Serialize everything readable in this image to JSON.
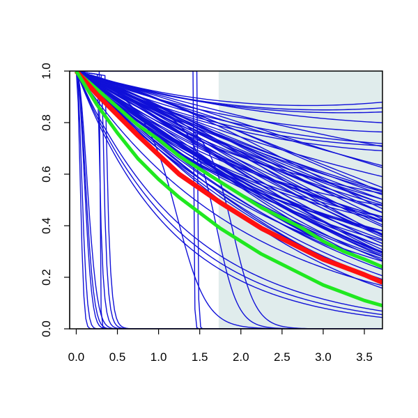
{
  "chart_data": {
    "type": "line",
    "title": "",
    "xlabel": "",
    "ylabel": "",
    "xlim": [
      -0.08,
      3.72
    ],
    "ylim": [
      0,
      1
    ],
    "x_ticks": [
      "0.0",
      "0.5",
      "1.0",
      "1.5",
      "2.0",
      "2.5",
      "3.0",
      "3.5"
    ],
    "y_ticks": [
      "0.0",
      "0.2",
      "0.4",
      "0.6",
      "0.8",
      "1.0"
    ],
    "shaded_region": {
      "x_from": 1.73,
      "x_to": 3.72,
      "color": "#e0ecec"
    },
    "grid": false,
    "legend": "none",
    "colors": {
      "posterior_draws": "#1010d8",
      "mean": "#ff1010",
      "interval": "#20e820"
    },
    "bundle": {
      "n_curves": 70,
      "log_slope_min": -0.33,
      "log_slope_max": -0.08,
      "curvature_min": -0.05,
      "curvature_max": 0.025
    },
    "extra_curves": [
      {
        "kind": "exp",
        "x0": 0,
        "rate": 0.17
      },
      {
        "kind": "exp",
        "x0": 0,
        "rate": 0.27
      },
      {
        "kind": "exp",
        "x0": 0,
        "rate": 0.36
      },
      {
        "kind": "exp",
        "x0": 0,
        "rate": 0.48
      },
      {
        "kind": "exp",
        "x0": 0,
        "rate": 0.72
      },
      {
        "kind": "exp",
        "x0": 0,
        "rate": 0.78
      },
      {
        "kind": "exp",
        "x0": 0,
        "rate": 0.84
      },
      {
        "kind": "sigmoid",
        "mid": 1.92,
        "width": 0.14,
        "plateau": 0.6
      },
      {
        "kind": "sigmoid",
        "mid": 1.72,
        "width": 0.13,
        "plateau": 0.7
      },
      {
        "kind": "sigmoid",
        "mid": 1.25,
        "width": 0.18,
        "plateau": 1.0
      },
      {
        "kind": "cliff",
        "at": 1.42,
        "level": 1.0
      },
      {
        "kind": "cliff",
        "at": 1.47,
        "level": 1.0
      },
      {
        "kind": "cliff",
        "at": 0.28,
        "level": 1.0
      },
      {
        "kind": "fast",
        "rate": 8.0
      },
      {
        "kind": "fast",
        "rate": 11.0
      },
      {
        "kind": "fast",
        "rate": 14.0
      },
      {
        "kind": "fast",
        "rate": 30.0
      },
      {
        "kind": "fast",
        "rate": 60.0
      },
      {
        "kind": "drop",
        "at": 0.27,
        "width": 0.03,
        "tail": 6.0
      },
      {
        "kind": "drop",
        "at": 0.32,
        "width": 0.03,
        "tail": 5.0
      },
      {
        "kind": "drop",
        "at": 0.36,
        "width": 0.03,
        "tail": 4.0
      }
    ],
    "series": [
      {
        "x": [
          0,
          0.25,
          0.5,
          0.75,
          1.0,
          1.25,
          1.5,
          1.75,
          2.0,
          2.25,
          2.5,
          2.75,
          3.0,
          3.25,
          3.5,
          3.72
        ],
        "values": [
          1.0,
          0.93,
          0.86,
          0.79,
          0.735,
          0.67,
          0.62,
          0.57,
          0.52,
          0.47,
          0.43,
          0.39,
          0.34,
          0.3,
          0.27,
          0.24
        ],
        "role": "upper-interval"
      },
      {
        "x": [
          0,
          0.25,
          0.5,
          0.75,
          1.0,
          1.25,
          1.5,
          1.75,
          2.0,
          2.25,
          2.5,
          2.75,
          3.0,
          3.25,
          3.5,
          3.72
        ],
        "values": [
          1.0,
          0.91,
          0.83,
          0.75,
          0.675,
          0.6,
          0.545,
          0.49,
          0.44,
          0.39,
          0.35,
          0.31,
          0.27,
          0.24,
          0.21,
          0.18
        ],
        "role": "mean"
      },
      {
        "x": [
          0,
          0.25,
          0.5,
          0.75,
          1.0,
          1.25,
          1.5,
          1.75,
          2.0,
          2.25,
          2.5,
          2.75,
          3.0,
          3.25,
          3.5,
          3.72
        ],
        "values": [
          1.0,
          0.87,
          0.76,
          0.66,
          0.58,
          0.51,
          0.45,
          0.39,
          0.34,
          0.29,
          0.25,
          0.21,
          0.17,
          0.14,
          0.11,
          0.09
        ],
        "role": "lower-interval"
      }
    ]
  }
}
